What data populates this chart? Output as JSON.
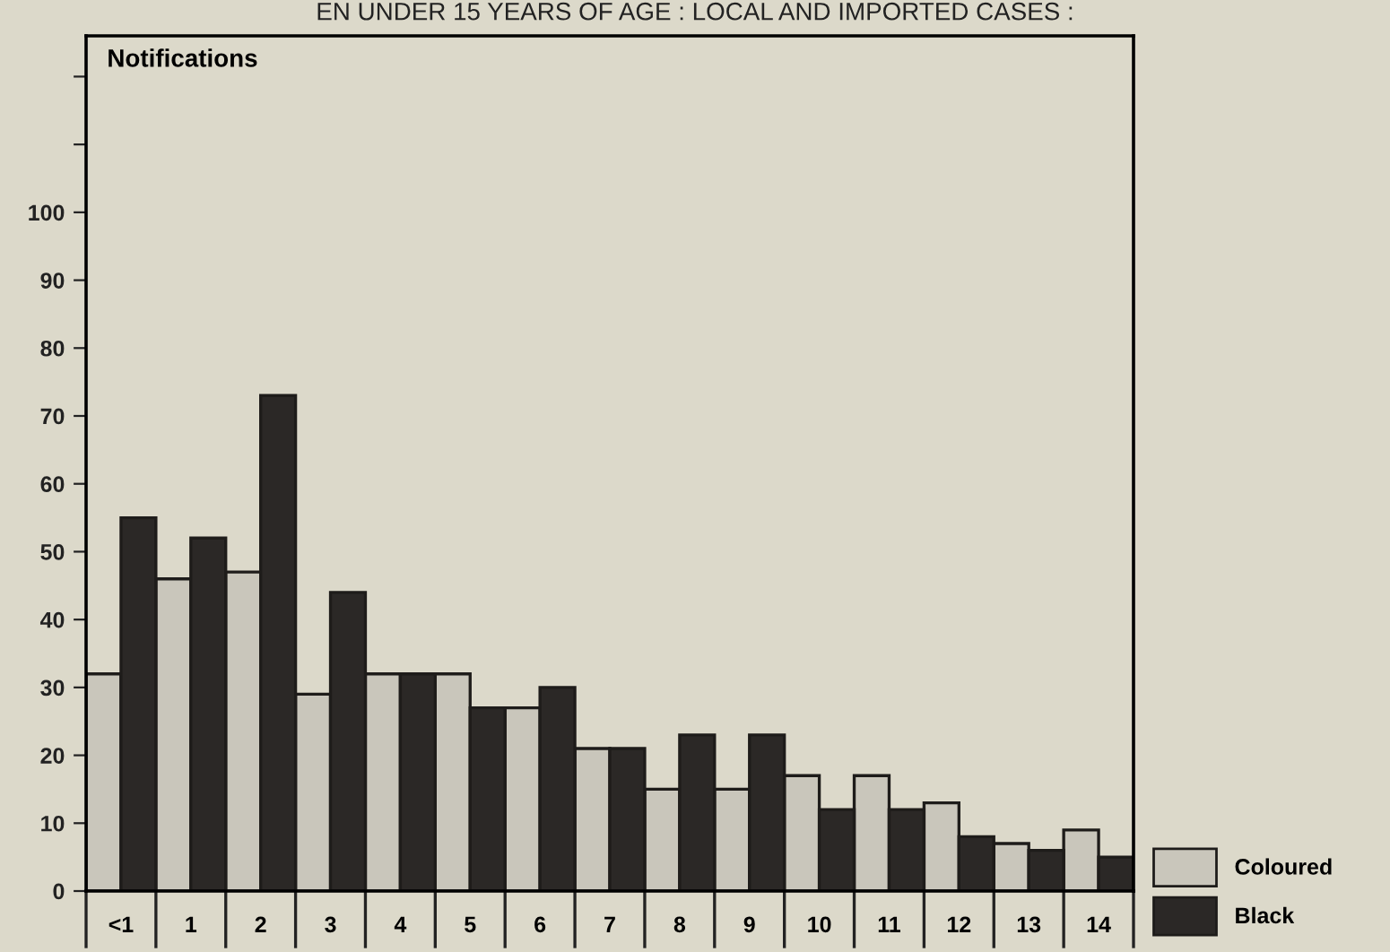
{
  "chart_data": {
    "type": "bar",
    "title": "EN UNDER 15 YEARS OF AGE : LOCAL AND IMPORTED CASES :",
    "ylabel": "Notifications",
    "categories": [
      "<1",
      "1",
      "2",
      "3",
      "4",
      "5",
      "6",
      "7",
      "8",
      "9",
      "10",
      "11",
      "12",
      "13",
      "14"
    ],
    "series": [
      {
        "name": "Coloured",
        "color": "#c9c6bb",
        "values": [
          32,
          46,
          47,
          29,
          32,
          32,
          27,
          21,
          15,
          15,
          17,
          17,
          13,
          7,
          9
        ]
      },
      {
        "name": "Black",
        "color": "#2b2826",
        "values": [
          55,
          52,
          73,
          44,
          32,
          27,
          30,
          21,
          23,
          23,
          12,
          12,
          8,
          6,
          5
        ]
      }
    ],
    "ylim": [
      0,
      126
    ],
    "yticks": [
      0,
      10,
      20,
      30,
      40,
      50,
      60,
      70,
      80,
      90,
      100,
      {
        "value": 110,
        "label": null
      },
      {
        "value": 120,
        "label": null
      }
    ],
    "grid": false,
    "legend": "bottom right"
  }
}
